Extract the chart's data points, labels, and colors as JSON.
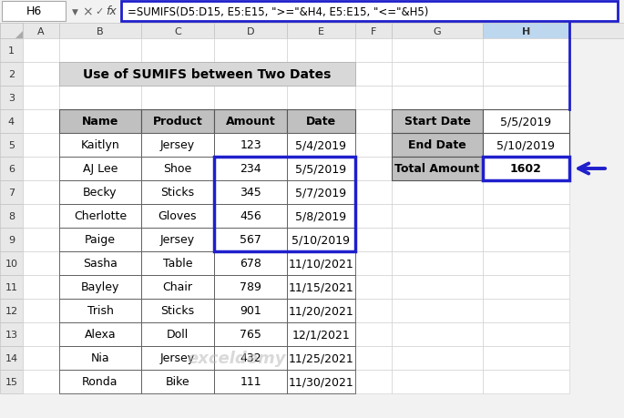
{
  "title": "Use of SUMIFS between Two Dates",
  "formula_bar_text": "=SUMIFS(D5:D15, E5:E15, \">=\"&H4, E5:E15, \"<=\"&H5)",
  "cell_ref": "H6",
  "main_table": {
    "headers": [
      "Name",
      "Product",
      "Amount",
      "Date"
    ],
    "rows": [
      [
        "Kaitlyn",
        "Jersey",
        "123",
        "5/4/2019"
      ],
      [
        "AJ Lee",
        "Shoe",
        "234",
        "5/5/2019"
      ],
      [
        "Becky",
        "Sticks",
        "345",
        "5/7/2019"
      ],
      [
        "Cherlotte",
        "Gloves",
        "456",
        "5/8/2019"
      ],
      [
        "Paige",
        "Jersey",
        "567",
        "5/10/2019"
      ],
      [
        "Sasha",
        "Table",
        "678",
        "11/10/2021"
      ],
      [
        "Bayley",
        "Chair",
        "789",
        "11/15/2021"
      ],
      [
        "Trish",
        "Sticks",
        "901",
        "11/20/2021"
      ],
      [
        "Alexa",
        "Doll",
        "765",
        "12/1/2021"
      ],
      [
        "Nia",
        "Jersey",
        "432",
        "11/25/2021"
      ],
      [
        "Ronda",
        "Bike",
        "111",
        "11/30/2021"
      ]
    ]
  },
  "side_table": {
    "rows": [
      [
        "Start Date",
        "5/5/2019"
      ],
      [
        "End Date",
        "5/10/2019"
      ],
      [
        "Total Amount",
        "1602"
      ]
    ]
  },
  "colors": {
    "header_bg": "#C0C0C0",
    "cell_bg": "#FFFFFF",
    "title_bg": "#D8D8D8",
    "highlight_border": "#1F1FCC",
    "topbar_bg": "#F2F2F2",
    "col_header_bg": "#E8E8E8",
    "col_header_selected_bg": "#BDD7EE",
    "side_header_bg": "#C0C0C0",
    "grid_line": "#AAAAAA",
    "table_border": "#555555"
  },
  "figsize": [
    6.85,
    4.6
  ],
  "dpi": 100
}
